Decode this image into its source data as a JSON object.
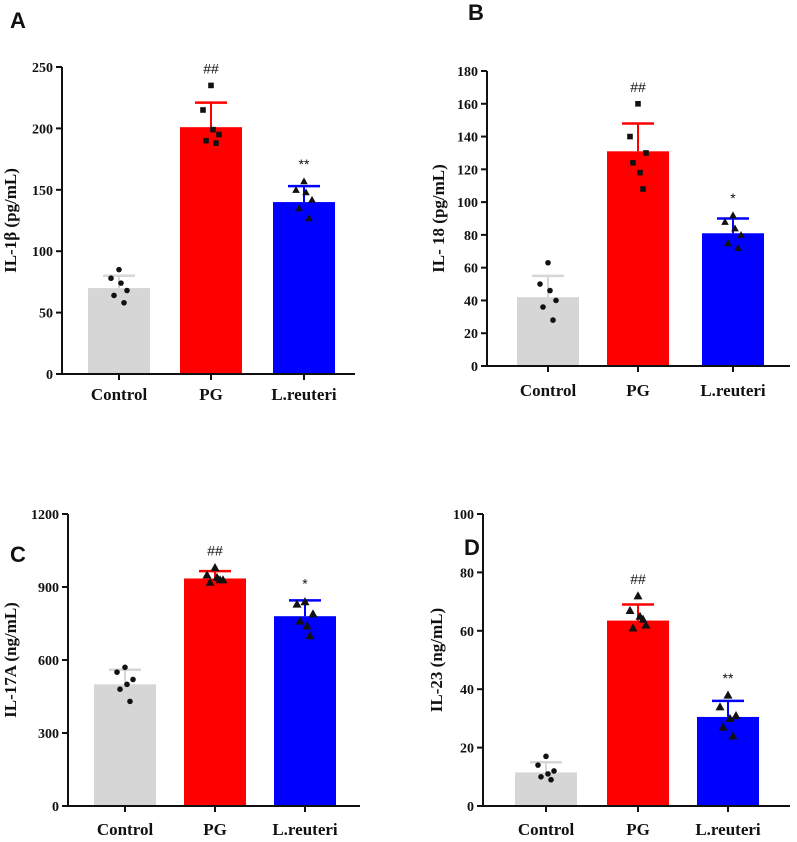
{
  "chart_data": [
    {
      "panel": "A",
      "type": "bar",
      "ylabel": "IL-1β  (pg/mL)",
      "categories": [
        "Control",
        "PG",
        "L.reuteri"
      ],
      "values": [
        70,
        201,
        140
      ],
      "errors": [
        10,
        20,
        13
      ],
      "ylim": [
        0,
        250
      ],
      "yticks": [
        0,
        50,
        100,
        150,
        200,
        250
      ],
      "colors": [
        "#d6d6d6",
        "#ff0000",
        "#0000ff"
      ],
      "significance": [
        "",
        "##",
        "**"
      ],
      "marker": "circle",
      "points": [
        [
          85,
          78,
          68,
          64,
          58,
          74
        ],
        [
          235,
          215,
          195,
          190,
          188,
          199
        ],
        [
          157,
          150,
          142,
          135,
          127,
          148
        ]
      ]
    },
    {
      "panel": "B",
      "type": "bar",
      "ylabel": "IL- 18  (pg/mL)",
      "categories": [
        "Control",
        "PG",
        "L.reuteri"
      ],
      "values": [
        42,
        131,
        81
      ],
      "errors": [
        13,
        17,
        9
      ],
      "ylim": [
        0,
        180
      ],
      "yticks": [
        0,
        20,
        40,
        60,
        80,
        100,
        120,
        140,
        160,
        180
      ],
      "colors": [
        "#d6d6d6",
        "#ff0000",
        "#0000ff"
      ],
      "significance": [
        "",
        "##",
        "*"
      ],
      "marker": "circle",
      "points": [
        [
          63,
          50,
          40,
          36,
          28,
          46
        ],
        [
          160,
          140,
          130,
          124,
          108,
          118
        ],
        [
          92,
          88,
          80,
          75,
          72,
          84
        ]
      ]
    },
    {
      "panel": "C",
      "type": "bar",
      "ylabel": "IL-17A  (ng/mL)",
      "categories": [
        "Control",
        "PG",
        "L.reuteri"
      ],
      "values": [
        500,
        935,
        780
      ],
      "errors": [
        60,
        30,
        65
      ],
      "ylim": [
        0,
        1200
      ],
      "yticks": [
        0,
        300,
        600,
        900,
        1200
      ],
      "colors": [
        "#d6d6d6",
        "#ff0000",
        "#0000ff"
      ],
      "significance": [
        "",
        "##",
        "*"
      ],
      "marker": "triangle",
      "points": [
        [
          570,
          550,
          520,
          480,
          430,
          500
        ],
        [
          980,
          950,
          930,
          920,
          930,
          940
        ],
        [
          840,
          830,
          790,
          760,
          700,
          740
        ]
      ]
    },
    {
      "panel": "D",
      "type": "bar",
      "ylabel": "IL-23  (ng/mL)",
      "categories": [
        "Control",
        "PG",
        "L.reuteri"
      ],
      "values": [
        11.5,
        63.5,
        30.5
      ],
      "errors": [
        3.5,
        5.5,
        5.5
      ],
      "ylim": [
        0,
        100
      ],
      "yticks": [
        0,
        20,
        40,
        60,
        80,
        100
      ],
      "colors": [
        "#d6d6d6",
        "#ff0000",
        "#0000ff"
      ],
      "significance": [
        "",
        "##",
        "**"
      ],
      "marker": "triangle",
      "points": [
        [
          17,
          14,
          12,
          10,
          9,
          11
        ],
        [
          72,
          67,
          62,
          61,
          64,
          65
        ],
        [
          38,
          34,
          31,
          27,
          24,
          30
        ]
      ]
    }
  ]
}
